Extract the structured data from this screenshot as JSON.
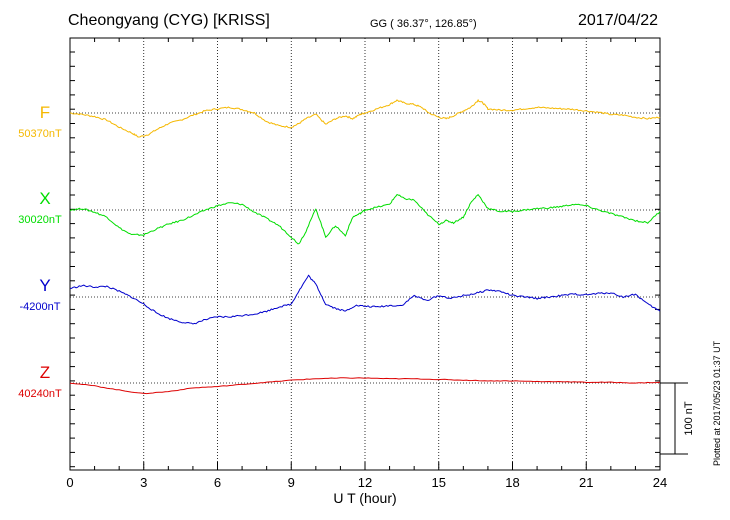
{
  "header": {
    "station": "Cheongyang (CYG)  [KRISS]",
    "coords": "GG ( 36.37°, 126.85°)",
    "date": "2017/04/22"
  },
  "footer": {
    "plotted": "Plotted at 2017/05/23 01:37 UT"
  },
  "chart_data": {
    "type": "line",
    "xlabel": "U T (hour)",
    "xlim": [
      0,
      24
    ],
    "xticks": [
      "0",
      "3",
      "6",
      "9",
      "12",
      "15",
      "18",
      "21",
      "24"
    ],
    "grid": true,
    "scale_bar": "100 nT",
    "series": [
      {
        "name": "F",
        "baseline": "50370nT",
        "color": "#f5b800",
        "x": [
          0,
          0.5,
          1,
          1.5,
          2,
          2.5,
          2.8,
          3.2,
          3.6,
          4,
          4.5,
          5,
          5.5,
          6,
          6.5,
          7,
          7.5,
          8,
          8.5,
          9,
          9.3,
          9.6,
          10,
          10.4,
          10.8,
          11.2,
          11.5,
          11.8,
          12,
          12.5,
          13,
          13.3,
          13.6,
          14,
          14.3,
          14.6,
          15,
          15.3,
          15.6,
          16,
          16.3,
          16.6,
          16.8,
          17,
          17.5,
          18,
          18.5,
          19,
          19.5,
          20,
          20.5,
          21,
          21.5,
          22,
          22.5,
          23,
          23.5,
          24
        ],
        "values": [
          0,
          -2,
          -5,
          -10,
          -20,
          -28,
          -34,
          -30,
          -22,
          -15,
          -10,
          -3,
          3,
          6,
          8,
          5,
          0,
          -12,
          -18,
          -20,
          -15,
          -8,
          -2,
          -16,
          -8,
          -4,
          -8,
          -2,
          0,
          6,
          12,
          18,
          14,
          12,
          8,
          0,
          -6,
          -8,
          -4,
          3,
          8,
          18,
          14,
          6,
          4,
          4,
          6,
          8,
          7,
          6,
          5,
          3,
          1,
          -2,
          -3,
          -6,
          -8,
          -6
        ]
      },
      {
        "name": "X",
        "baseline": "30020nT",
        "color": "#00dd00",
        "x": [
          0,
          0.5,
          1,
          1.5,
          2,
          2.5,
          3,
          3.5,
          4,
          4.5,
          5,
          5.5,
          6,
          6.5,
          7,
          7.5,
          8,
          8.5,
          9,
          9.3,
          9.6,
          10,
          10.4,
          10.8,
          11.2,
          11.5,
          11.8,
          12,
          12.5,
          13,
          13.3,
          13.6,
          14,
          14.5,
          15,
          15.3,
          15.6,
          16,
          16.3,
          16.6,
          17,
          17.5,
          18,
          18.5,
          19,
          19.5,
          20,
          20.5,
          21,
          21.5,
          22,
          22.5,
          23,
          23.5,
          24
        ],
        "values": [
          0,
          2,
          -3,
          -10,
          -25,
          -35,
          -35,
          -27,
          -20,
          -15,
          -8,
          0,
          6,
          10,
          8,
          -3,
          -12,
          -22,
          -38,
          -48,
          -30,
          2,
          -38,
          -22,
          -36,
          -10,
          -5,
          0,
          4,
          8,
          22,
          16,
          14,
          -5,
          -20,
          -15,
          -18,
          -10,
          10,
          22,
          2,
          -2,
          -2,
          0,
          2,
          3,
          5,
          8,
          6,
          0,
          -5,
          -10,
          -15,
          -18,
          -2
        ]
      },
      {
        "name": "Y",
        "baseline": "-4200nT",
        "color": "#0000cc",
        "x": [
          0,
          0.5,
          1,
          1.5,
          2,
          2.5,
          3,
          3.5,
          4,
          4.5,
          5,
          5.5,
          6,
          6.5,
          7,
          7.5,
          8,
          8.5,
          9,
          9.3,
          9.7,
          10,
          10.4,
          10.8,
          11.2,
          11.6,
          12,
          12.5,
          13,
          13.5,
          14,
          14.5,
          15,
          15.5,
          16,
          16.5,
          17,
          17.5,
          18,
          18.5,
          19,
          19.5,
          20,
          20.5,
          21,
          21.5,
          22,
          22.5,
          23,
          23.5,
          24
        ],
        "values": [
          12,
          16,
          14,
          15,
          8,
          0,
          -10,
          -22,
          -30,
          -35,
          -38,
          -32,
          -28,
          -28,
          -26,
          -24,
          -20,
          -14,
          -10,
          8,
          30,
          18,
          -10,
          -16,
          -20,
          -12,
          -13,
          -14,
          -12,
          -12,
          2,
          -5,
          2,
          -2,
          2,
          5,
          10,
          8,
          2,
          0,
          -2,
          0,
          2,
          4,
          3,
          5,
          6,
          0,
          4,
          -10,
          -20
        ]
      },
      {
        "name": "Z",
        "baseline": "40240nT",
        "color": "#dd0000",
        "x": [
          0,
          1,
          2,
          3,
          4,
          5,
          6,
          7,
          8,
          9,
          10,
          11,
          12,
          13,
          14,
          15,
          16,
          17,
          18,
          19,
          20,
          21,
          22,
          23,
          24
        ],
        "values": [
          0,
          -4,
          -10,
          -15,
          -12,
          -7,
          -5,
          -2,
          1,
          4,
          6,
          7,
          7,
          6,
          6,
          5,
          4,
          3,
          3,
          2,
          2,
          1,
          1,
          0,
          1
        ]
      }
    ]
  }
}
